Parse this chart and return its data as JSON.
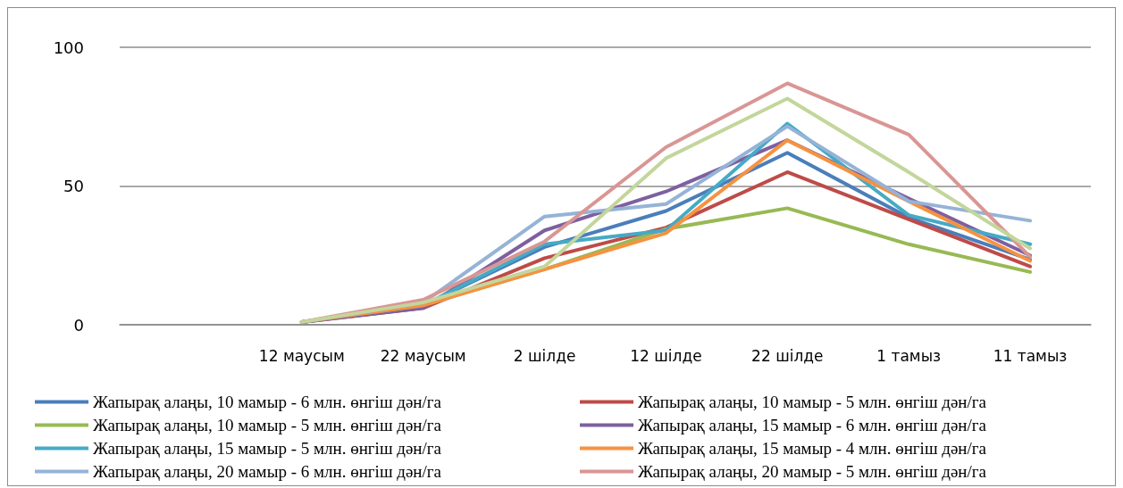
{
  "chart_data": {
    "type": "line",
    "categories": [
      null,
      "12 маусым",
      "22 маусым",
      "2 шілде",
      "12 шілде",
      "22 шілде",
      "1 тамыз",
      "11 тамыз"
    ],
    "ylim": [
      0,
      100
    ],
    "yticks": [
      0,
      50,
      100
    ],
    "grid": "y",
    "legend": "bottom",
    "marker": "none",
    "line_style": "solid",
    "series": [
      {
        "name": "Жапырақ алаңы, 10 мамыр - 6 млн. өнгіш дән/га",
        "color": "#4a7ebb",
        "values": [
          null,
          1,
          7,
          28,
          41,
          62,
          38.6,
          23.5
        ]
      },
      {
        "name": "Жапырақ алаңы, 10 мамыр - 5 млн. өнгіш дән/га",
        "color": "#be4b48",
        "values": [
          null,
          1,
          6,
          24,
          35,
          55,
          38,
          21
        ]
      },
      {
        "name": "Жапырақ алаңы, 10 мамыр - 5 млн. өнгіш дән/га",
        "color": "#98b954",
        "values": [
          null,
          1,
          7,
          20,
          34.5,
          42,
          29,
          19
        ]
      },
      {
        "name": "Жапырақ алаңы, 15 мамыр - 6 млн. өнгіш дән/га",
        "color": "#7d60a0",
        "values": [
          null,
          1,
          6,
          34,
          48,
          66.5,
          45.5,
          25
        ]
      },
      {
        "name": "Жапырақ алаңы, 15 мамыр - 5 млн. өнгіш дән/га",
        "color": "#46aac5",
        "values": [
          null,
          1,
          7,
          29,
          34,
          72.5,
          39.5,
          29
        ]
      },
      {
        "name": "Жапырақ алаңы, 15 мамыр - 4 млн. өнгіш дән/га",
        "color": "#f69240",
        "values": [
          null,
          1,
          7,
          20,
          33,
          66.5,
          44.5,
          23
        ]
      },
      {
        "name": "Жапырақ алаңы, 20 мамыр - 6 млн. өнгіш дән/га",
        "color": "#95b3d7",
        "values": [
          null,
          1,
          8,
          39,
          43.5,
          71.5,
          44.5,
          37.5
        ]
      },
      {
        "name": "Жапырақ алаңы, 20 мамыр - 5 млн. өнгіш дән/га",
        "color": "#d99694",
        "values": [
          null,
          1,
          9,
          30,
          64,
          87,
          68.5,
          24.5
        ]
      },
      {
        "color": "#c3d69b",
        "values": [
          null,
          1,
          8,
          21,
          60,
          81.5,
          55,
          27.5
        ]
      }
    ]
  }
}
